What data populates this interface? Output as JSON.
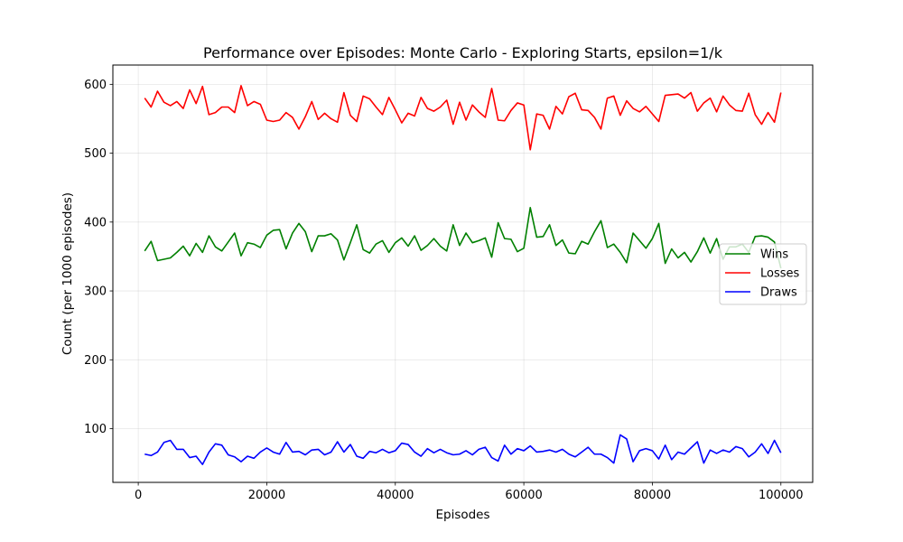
{
  "chart_data": {
    "type": "line",
    "title": "Performance over Episodes: Monte Carlo - Exploring Starts, epsilon=1/k",
    "xlabel": "Episodes",
    "ylabel": "Count (per 1000 episodes)",
    "xlim": [
      -3950,
      104950
    ],
    "ylim": [
      22,
      628
    ],
    "xticks": [
      0,
      20000,
      40000,
      60000,
      80000,
      100000
    ],
    "xtick_labels": [
      "0",
      "20000",
      "40000",
      "60000",
      "80000",
      "100000"
    ],
    "yticks": [
      100,
      200,
      300,
      400,
      500,
      600
    ],
    "ytick_labels": [
      "100",
      "200",
      "300",
      "400",
      "500",
      "600"
    ],
    "grid": true,
    "legend": "center-right",
    "x_start": 1000,
    "x_step": 1000,
    "series": [
      {
        "name": "Wins",
        "color": "#008000",
        "values": [
          358,
          372,
          344,
          346,
          348,
          356,
          365,
          351,
          369,
          356,
          380,
          364,
          358,
          371,
          384,
          351,
          370,
          368,
          363,
          381,
          388,
          389,
          361,
          384,
          398,
          386,
          357,
          380,
          380,
          383,
          374,
          345,
          370,
          396,
          360,
          355,
          368,
          373,
          356,
          370,
          377,
          365,
          380,
          359,
          366,
          376,
          365,
          358,
          396,
          366,
          384,
          370,
          373,
          377,
          349,
          399,
          376,
          375,
          357,
          362,
          421,
          378,
          379,
          396,
          366,
          374,
          355,
          354,
          372,
          368,
          386,
          402,
          363,
          368,
          356,
          341,
          384,
          373,
          362,
          376,
          398,
          340,
          361,
          348,
          356,
          342,
          357,
          377,
          355,
          376,
          346,
          364,
          364,
          368,
          356,
          379,
          380,
          378,
          371,
          333
        ]
      },
      {
        "name": "Losses",
        "color": "#ff0000",
        "values": [
          580,
          567,
          590,
          574,
          569,
          575,
          565,
          592,
          572,
          597,
          556,
          559,
          567,
          567,
          559,
          598,
          569,
          575,
          571,
          548,
          546,
          548,
          559,
          552,
          535,
          553,
          575,
          549,
          558,
          550,
          545,
          588,
          555,
          546,
          583,
          579,
          567,
          556,
          581,
          563,
          544,
          558,
          554,
          581,
          565,
          561,
          567,
          577,
          542,
          574,
          548,
          570,
          560,
          552,
          594,
          548,
          547,
          562,
          573,
          570,
          505,
          557,
          555,
          535,
          568,
          557,
          582,
          587,
          563,
          562,
          552,
          535,
          580,
          583,
          555,
          576,
          565,
          560,
          568,
          557,
          546,
          584,
          585,
          586,
          580,
          588,
          561,
          573,
          580,
          560,
          583,
          570,
          562,
          561,
          587,
          556,
          542,
          559,
          545,
          588
        ]
      },
      {
        "name": "Draws",
        "color": "#0000ff",
        "values": [
          63,
          61,
          66,
          80,
          83,
          70,
          70,
          58,
          60,
          48,
          66,
          78,
          76,
          62,
          59,
          52,
          60,
          57,
          66,
          72,
          66,
          63,
          80,
          66,
          67,
          62,
          69,
          70,
          62,
          66,
          81,
          66,
          77,
          60,
          57,
          67,
          65,
          70,
          65,
          68,
          79,
          77,
          66,
          60,
          71,
          65,
          70,
          65,
          62,
          63,
          68,
          62,
          70,
          73,
          58,
          53,
          76,
          63,
          71,
          68,
          75,
          66,
          67,
          69,
          66,
          70,
          63,
          59,
          66,
          73,
          63,
          63,
          58,
          50,
          91,
          85,
          52,
          68,
          71,
          68,
          56,
          76,
          55,
          66,
          63,
          72,
          81,
          50,
          69,
          64,
          69,
          66,
          74,
          71,
          59,
          66,
          78,
          64,
          83,
          65
        ]
      }
    ]
  }
}
